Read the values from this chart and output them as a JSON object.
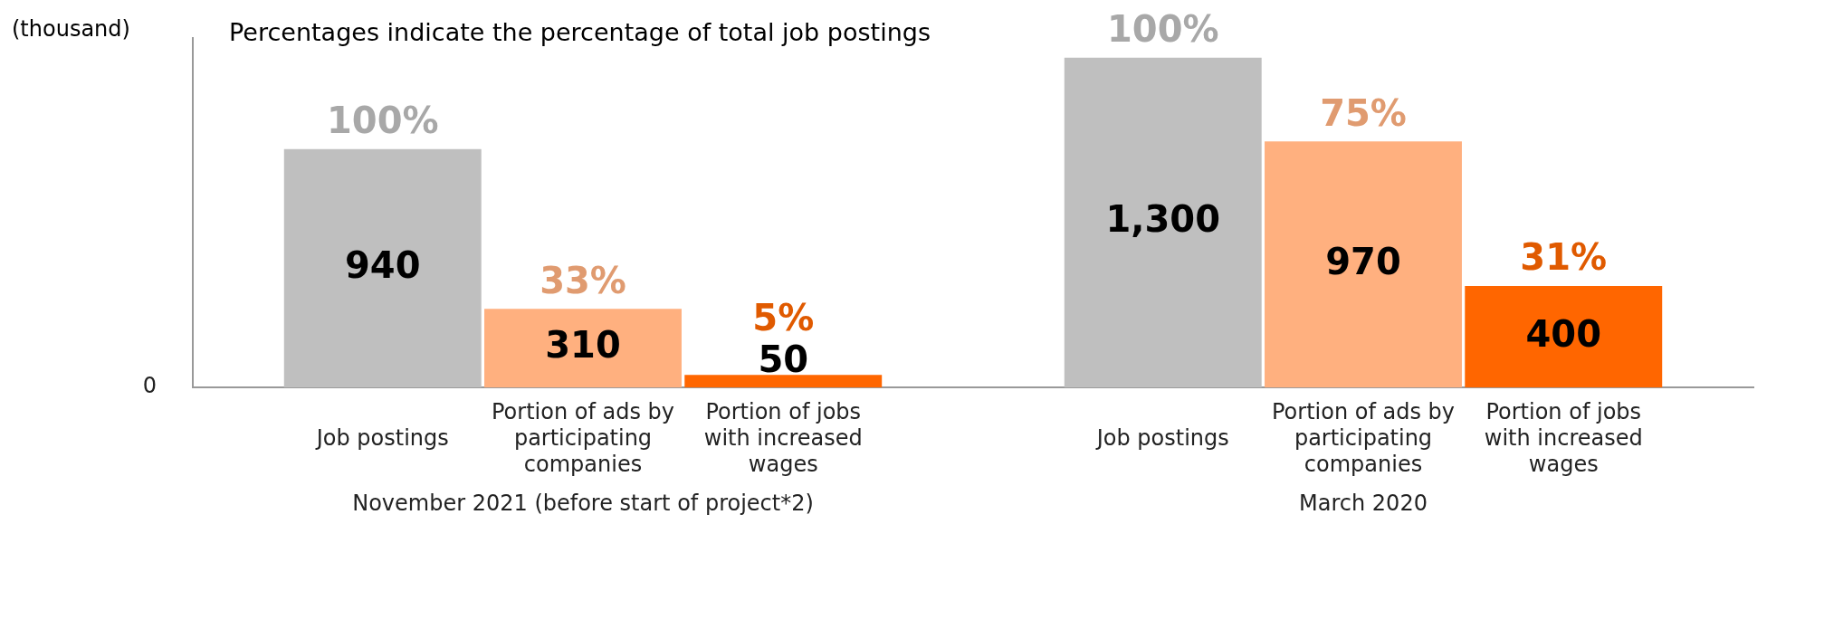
{
  "chart_data": {
    "type": "bar",
    "title": "Percentages indicate the percentage of total job postings",
    "ylabel": "(thousand)",
    "categories": [
      "November 2021 (before start of project*2)",
      "March 2020"
    ],
    "series": [
      {
        "name": "Job postings",
        "color": "#bfbfbf",
        "values": [
          940,
          1300
        ],
        "value_labels": [
          "940",
          "1,300"
        ]
      },
      {
        "name": "Portion of ads by participating companies",
        "color": "#ffb07f",
        "values": [
          310,
          970
        ],
        "value_labels": [
          "310",
          "970"
        ]
      },
      {
        "name": "Portion of jobs with increased wages",
        "color": "#ff6600",
        "values": [
          50,
          400
        ],
        "value_labels": [
          "50",
          "400"
        ]
      }
    ],
    "legend": false,
    "annotations": [
      "100%",
      "33%",
      "5%",
      "100%",
      "75%",
      "31%",
      "0"
    ]
  }
}
